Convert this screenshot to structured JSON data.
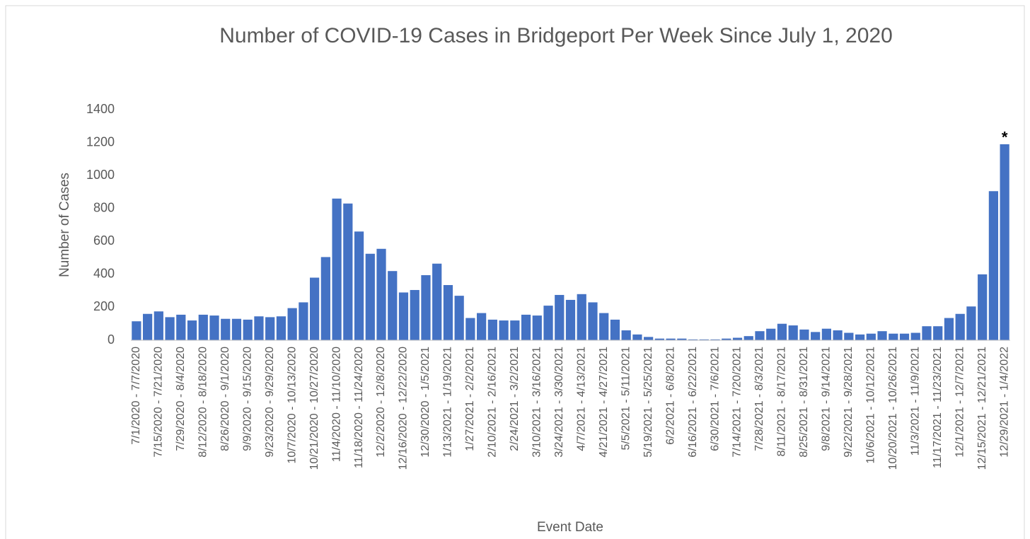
{
  "chart_data": {
    "type": "bar",
    "title": "Number of COVID-19 Cases in Bridgeport Per Week Since July 1, 2020",
    "xlabel": "Event Date",
    "ylabel": "Number of Cases",
    "annotation": "*",
    "categories": [
      "7/1/2020 - 7/7/2020",
      null,
      "7/15/2020 - 7/21/2020",
      null,
      "7/29/2020 - 8/4/2020",
      null,
      "8/12/2020 - 8/18/2020",
      null,
      "8/26/2020 - 9/1/2020",
      null,
      "9/9/2020 - 9/15/2020",
      null,
      "9/23/2020 - 9/29/2020",
      null,
      "10/7/2020 - 10/13/2020",
      null,
      "10/21/2020 - 10/27/2020",
      null,
      "11/4/2020 - 11/10/2020",
      null,
      "11/18/2020 - 11/24/2020",
      null,
      "12/2/2020 - 12/8/2020",
      null,
      "12/16/2020 - 12/22/2020",
      null,
      "12/30/2020 - 1/5/2021",
      null,
      "1/13/2021 - 1/19/2021",
      null,
      "1/27/2021 - 2/2/2021",
      null,
      "2/10/2021 - 2/16/2021",
      null,
      "2/24/2021 - 3/2/2021",
      null,
      "3/10/2021 - 3/16/2021",
      null,
      "3/24/2021 - 3/30/2021",
      null,
      "4/7/2021 - 4/13/2021",
      null,
      "4/21/2021 - 4/27/2021",
      null,
      "5/5/2021 - 5/11/2021",
      null,
      "5/19/2021 - 5/25/2021",
      null,
      "6/2/2021 - 6/8/2021",
      null,
      "6/16/2021 - 6/22/2021",
      null,
      "6/30/2021 - 7/6/2021",
      null,
      "7/14/2021 - 7/20/2021",
      null,
      "7/28/2021 - 8/3/2021",
      null,
      "8/11/2021 - 8/17/2021",
      null,
      "8/25/2021 - 8/31/2021",
      null,
      "9/8/2021 - 9/14/2021",
      null,
      "9/22/2021 - 9/28/2021",
      null,
      "10/6/2021 - 10/12/2021",
      null,
      "10/20/2021 - 10/26/2021",
      null,
      "11/3/2021 - 11/9/2021",
      null,
      "11/17/2021 - 11/23/2021",
      null,
      "12/1/2021 - 12/7/2021",
      null,
      "12/15/2021 - 12/21/2021",
      null,
      "12/29/2021 - 1/4/2022"
    ],
    "values": [
      115,
      160,
      175,
      140,
      155,
      120,
      155,
      150,
      130,
      130,
      125,
      145,
      140,
      145,
      195,
      230,
      380,
      505,
      860,
      830,
      660,
      525,
      555,
      420,
      290,
      305,
      395,
      465,
      335,
      270,
      135,
      165,
      125,
      120,
      120,
      155,
      150,
      210,
      275,
      245,
      280,
      230,
      165,
      125,
      60,
      35,
      20,
      10,
      10,
      10,
      5,
      5,
      5,
      10,
      15,
      25,
      55,
      70,
      100,
      90,
      65,
      50,
      70,
      60,
      45,
      35,
      40,
      55,
      40,
      40,
      45,
      85,
      85,
      135,
      160,
      205,
      400,
      905,
      1190
    ],
    "color": "#4472c4",
    "ylim": [
      0,
      1400
    ],
    "yticks": [
      0,
      200,
      400,
      600,
      800,
      1000,
      1200,
      1400
    ],
    "grid": false
  }
}
